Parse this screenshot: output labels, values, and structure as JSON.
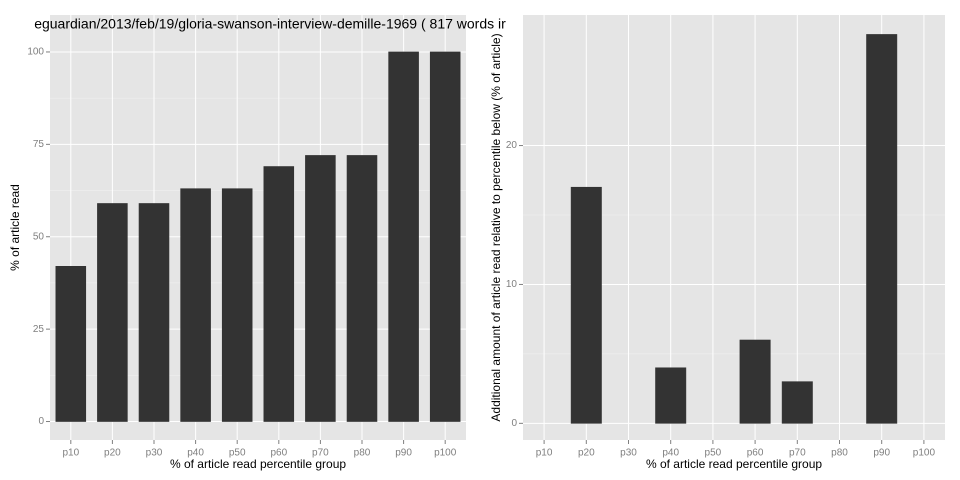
{
  "chart_data": [
    {
      "type": "bar",
      "title": "eguardian/2013/feb/19/gloria-swanson-interview-demille-1969 ( 817 words ir",
      "x_label": "% of article read percentile group",
      "y_label": "% of article read",
      "categories": [
        "p10",
        "p20",
        "p30",
        "p40",
        "p50",
        "p60",
        "p70",
        "p80",
        "p90",
        "p100"
      ],
      "values": [
        42,
        59,
        59,
        63,
        63,
        69,
        72,
        72,
        100,
        100
      ],
      "color": "#333333",
      "ylim": [
        -5,
        110
      ],
      "yticks": [
        0,
        25,
        50,
        75,
        100
      ],
      "grid": true
    },
    {
      "type": "bar",
      "x_label": "% of article read percentile group",
      "y_label": "Additional amount of article read relative to percentile below (% of article)",
      "categories": [
        "p10",
        "p20",
        "p30",
        "p40",
        "p50",
        "p60",
        "p70",
        "p80",
        "p90",
        "p100"
      ],
      "values": [
        0,
        17,
        0,
        4,
        0,
        6,
        3,
        0,
        28,
        0
      ],
      "color": "#333333",
      "ylim": [
        -1.2,
        29.4
      ],
      "yticks": [
        0,
        10,
        20
      ],
      "grid": true
    }
  ]
}
